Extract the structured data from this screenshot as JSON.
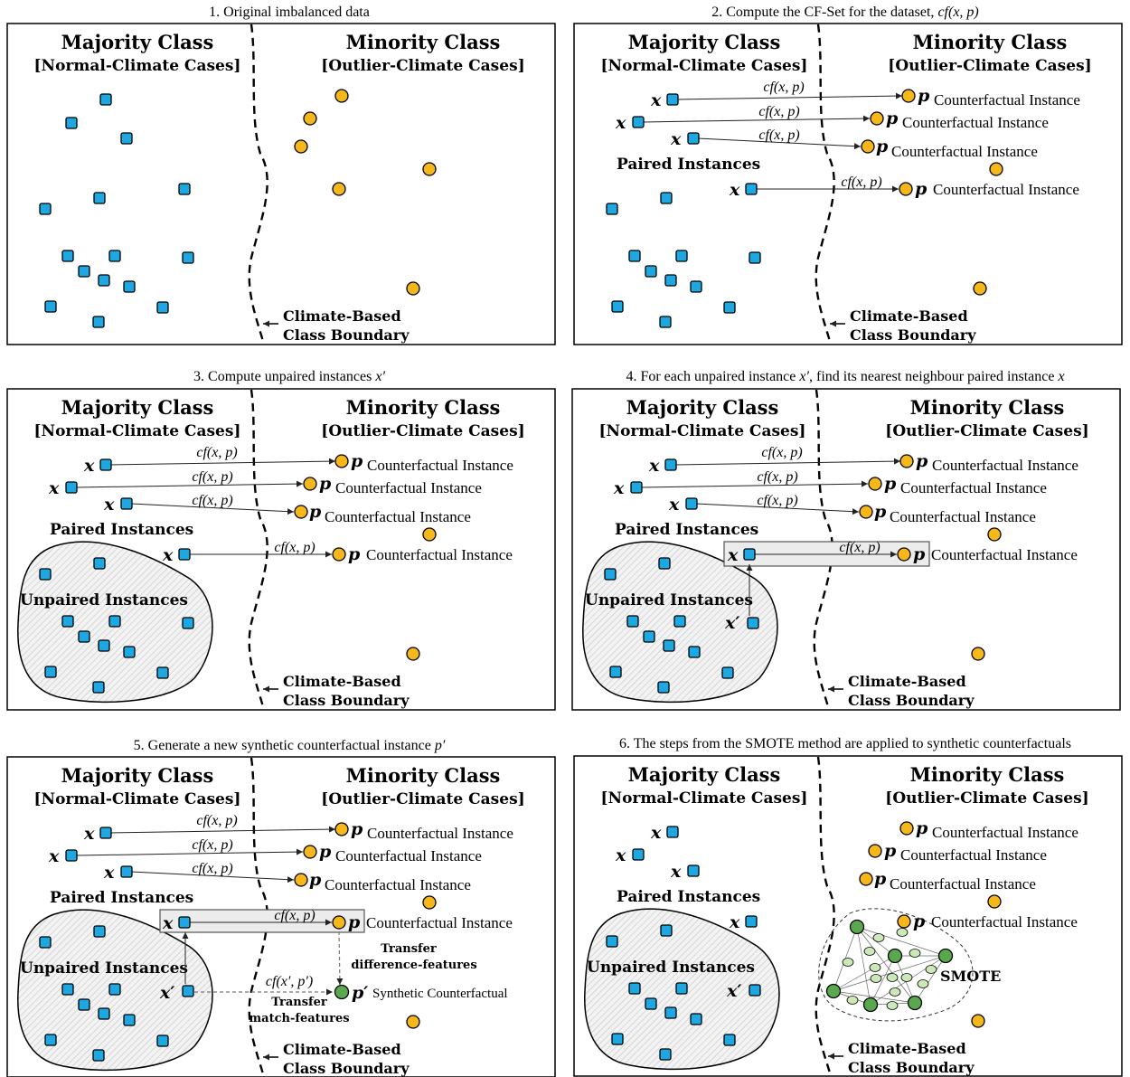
{
  "panels": [
    {
      "caption": "1. Original imbalanced data"
    },
    {
      "caption": "2. Compute the CF-Set for the dataset, ",
      "caption_italic": "cf(x, p)"
    },
    {
      "caption": "3. Compute unpaired instances ",
      "caption_italic": "x′"
    },
    {
      "caption": "4. For each unpaired instance ",
      "caption_italic": "x′",
      "caption_mid": ", find its nearest neighbour paired instance ",
      "caption_italic2": "x"
    },
    {
      "caption": "5. Generate a new synthetic counterfactual instance ",
      "caption_italic": "p′"
    },
    {
      "caption": "6. The steps from the SMOTE method are applied to synthetic counterfactuals"
    }
  ],
  "labels": {
    "majority_title": "Majority Class",
    "majority_sub": "[Normal-Climate Cases]",
    "minority_title": "Minority Class",
    "minority_sub": "[Outlier-Climate Cases]",
    "boundary_line1": "Climate-Based",
    "boundary_line2": "Class Boundary",
    "paired": "Paired Instances",
    "unpaired": "Unpaired Instances",
    "counterfactual": "Counterfactual Instance",
    "cf": "cf(x, p)",
    "cf_prime": "cf(x′, p′)",
    "x": "x",
    "p": "p",
    "x_prime": "x′",
    "p_prime": "p′",
    "synthetic": "Synthetic Counterfactual",
    "transfer_diff_1": "Transfer",
    "transfer_diff_2": "difference-features",
    "transfer_match_1": "Transfer",
    "transfer_match_2": "match-features",
    "smote": "SMOTE"
  },
  "colors": {
    "majority_square": "#1ea7e1",
    "minority_circle": "#f5b71a",
    "synthetic_dark": "#5aa84e",
    "synthetic_light": "#cde8b8",
    "highlight_box": "#ececec",
    "hatch": "#bdbdbd"
  }
}
